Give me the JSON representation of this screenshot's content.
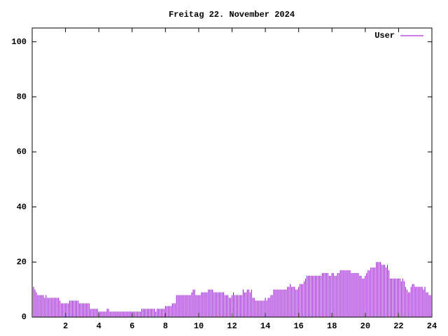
{
  "chart_data": {
    "type": "impulse",
    "title": "Freitag 22. November 2024",
    "series": [
      {
        "name": "User",
        "color": "#9400d3",
        "x": [
          0,
          0.083,
          0.167,
          0.25,
          0.333,
          0.417,
          0.5,
          0.583,
          0.667,
          0.75,
          0.833,
          0.917,
          1,
          1.083,
          1.167,
          1.25,
          1.333,
          1.417,
          1.5,
          1.583,
          1.667,
          1.75,
          1.833,
          1.917,
          2,
          2.083,
          2.167,
          2.25,
          2.333,
          2.417,
          2.5,
          2.583,
          2.667,
          2.75,
          2.833,
          2.917,
          3,
          3.083,
          3.167,
          3.25,
          3.333,
          3.417,
          3.5,
          3.583,
          3.667,
          3.75,
          3.833,
          3.917,
          4,
          4.083,
          4.167,
          4.25,
          4.333,
          4.417,
          4.5,
          4.583,
          4.667,
          4.75,
          4.833,
          4.917,
          5,
          5.083,
          5.167,
          5.25,
          5.333,
          5.417,
          5.5,
          5.583,
          5.667,
          5.75,
          5.833,
          5.917,
          6,
          6.083,
          6.167,
          6.25,
          6.333,
          6.417,
          6.5,
          6.583,
          6.667,
          6.75,
          6.833,
          6.917,
          7,
          7.083,
          7.167,
          7.25,
          7.333,
          7.417,
          7.5,
          7.583,
          7.667,
          7.75,
          7.833,
          7.917,
          8,
          8.083,
          8.167,
          8.25,
          8.333,
          8.417,
          8.5,
          8.583,
          8.667,
          8.75,
          8.833,
          8.917,
          9,
          9.083,
          9.167,
          9.25,
          9.333,
          9.417,
          9.5,
          9.583,
          9.667,
          9.75,
          9.833,
          9.917,
          10,
          10.083,
          10.167,
          10.25,
          10.333,
          10.417,
          10.5,
          10.583,
          10.667,
          10.75,
          10.833,
          10.917,
          11,
          11.083,
          11.167,
          11.25,
          11.333,
          11.417,
          11.5,
          11.583,
          11.667,
          11.75,
          11.833,
          11.917,
          12,
          12.083,
          12.167,
          12.25,
          12.333,
          12.417,
          12.5,
          12.583,
          12.667,
          12.75,
          12.833,
          12.917,
          13,
          13.083,
          13.167,
          13.25,
          13.333,
          13.417,
          13.5,
          13.583,
          13.667,
          13.75,
          13.833,
          13.917,
          14,
          14.083,
          14.167,
          14.25,
          14.333,
          14.417,
          14.5,
          14.583,
          14.667,
          14.75,
          14.833,
          14.917,
          15,
          15.083,
          15.167,
          15.25,
          15.333,
          15.417,
          15.5,
          15.583,
          15.667,
          15.75,
          15.833,
          15.917,
          16,
          16.083,
          16.167,
          16.25,
          16.333,
          16.417,
          16.5,
          16.583,
          16.667,
          16.75,
          16.833,
          16.917,
          17,
          17.083,
          17.167,
          17.25,
          17.333,
          17.417,
          17.5,
          17.583,
          17.667,
          17.75,
          17.833,
          17.917,
          18,
          18.083,
          18.167,
          18.25,
          18.333,
          18.417,
          18.5,
          18.583,
          18.667,
          18.75,
          18.833,
          18.917,
          19,
          19.083,
          19.167,
          19.25,
          19.333,
          19.417,
          19.5,
          19.583,
          19.667,
          19.75,
          19.833,
          19.917,
          20,
          20.083,
          20.167,
          20.25,
          20.333,
          20.417,
          20.5,
          20.583,
          20.667,
          20.75,
          20.833,
          20.917,
          21,
          21.083,
          21.167,
          21.25,
          21.333,
          21.417,
          21.5,
          21.583,
          21.667,
          21.75,
          21.833,
          21.917,
          22,
          22.083,
          22.167,
          22.25,
          22.333,
          22.417,
          22.5,
          22.583,
          22.667,
          22.75,
          22.833,
          22.917,
          23,
          23.083,
          23.167,
          23.25,
          23.333,
          23.417,
          23.5,
          23.583,
          23.667,
          23.75,
          23.833,
          23.917,
          24
        ],
        "values": [
          12,
          11,
          10,
          9,
          8,
          8,
          8,
          8,
          8,
          7,
          8,
          7,
          7,
          7,
          7,
          7,
          7,
          7,
          7,
          7,
          6,
          5,
          5,
          5,
          5,
          5,
          5,
          6,
          6,
          6,
          6,
          6,
          6,
          6,
          5,
          5,
          5,
          5,
          5,
          5,
          5,
          5,
          3,
          3,
          3,
          3,
          3,
          3,
          2,
          2,
          2,
          2,
          2,
          2,
          3,
          3,
          2,
          2,
          2,
          2,
          2,
          2,
          2,
          2,
          2,
          2,
          2,
          2,
          2,
          2,
          2,
          2,
          2,
          2,
          2,
          2,
          2,
          2,
          2,
          3,
          3,
          3,
          3,
          3,
          3,
          3,
          3,
          3,
          3,
          2,
          3,
          3,
          3,
          3,
          3,
          3,
          4,
          4,
          4,
          4,
          4,
          5,
          5,
          5,
          8,
          8,
          8,
          8,
          8,
          8,
          8,
          8,
          8,
          8,
          8,
          9,
          10,
          10,
          8,
          8,
          8,
          8,
          9,
          9,
          9,
          9,
          9,
          10,
          10,
          10,
          10,
          9,
          9,
          9,
          9,
          9,
          9,
          9,
          9,
          8,
          8,
          8,
          7,
          7,
          8,
          9,
          8,
          8,
          8,
          8,
          8,
          8,
          10,
          9,
          9,
          10,
          10,
          9,
          10,
          7,
          7,
          6,
          6,
          6,
          6,
          6,
          6,
          6,
          7,
          6,
          7,
          7,
          8,
          8,
          10,
          10,
          10,
          10,
          10,
          10,
          10,
          10,
          10,
          10,
          11,
          11,
          12,
          11,
          11,
          11,
          10,
          10,
          11,
          12,
          12,
          12,
          13,
          14,
          15,
          15,
          15,
          15,
          15,
          15,
          15,
          15,
          15,
          15,
          15,
          16,
          16,
          16,
          16,
          16,
          15,
          15,
          16,
          16,
          15,
          15,
          16,
          16,
          17,
          17,
          17,
          17,
          17,
          17,
          17,
          17,
          16,
          16,
          16,
          16,
          16,
          16,
          15,
          15,
          14,
          14,
          15,
          16,
          17,
          17,
          18,
          18,
          18,
          18,
          20,
          20,
          20,
          20,
          19,
          19,
          19,
          18,
          19,
          17,
          14,
          14,
          14,
          14,
          14,
          14,
          14,
          14,
          13,
          14,
          13,
          11,
          10,
          9,
          9,
          11,
          12,
          12,
          11,
          11,
          11,
          11,
          11,
          11,
          10,
          11,
          9,
          9,
          8,
          8,
          10
        ]
      }
    ],
    "xlim": [
      0,
      24
    ],
    "xticks": [
      2,
      4,
      6,
      8,
      10,
      12,
      14,
      16,
      18,
      20,
      22,
      24
    ],
    "ylim": [
      0,
      105
    ],
    "yticks": [
      0,
      20,
      40,
      60,
      80,
      100
    ],
    "legend": "top-right"
  }
}
